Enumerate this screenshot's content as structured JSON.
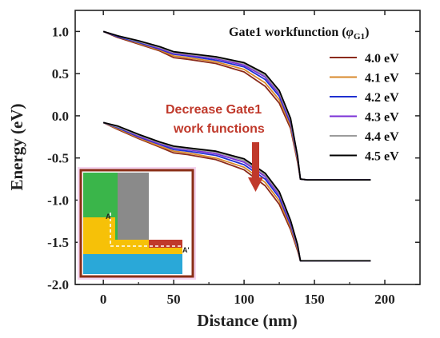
{
  "chart_data": {
    "type": "line",
    "xlabel": "Distance (nm)",
    "ylabel": "Energy (eV)",
    "xlim": [
      -20,
      225
    ],
    "ylim": [
      -2.0,
      1.25
    ],
    "xticks": [
      0,
      50,
      100,
      150,
      200
    ],
    "yticks": [
      1.0,
      0.5,
      0.0,
      -0.5,
      -1.0,
      -1.5,
      -2.0
    ],
    "xtick_labels": [
      "0",
      "50",
      "100",
      "150",
      "200"
    ],
    "ytick_labels": [
      "1.0",
      "0.5",
      "0.0",
      "-0.5",
      "-1.0",
      "-1.5",
      "-2.0"
    ],
    "legend": {
      "title_prefix": "Gate1 workfunction (",
      "title_symbol": "φ",
      "title_subscript": "G1",
      "title_suffix": ")",
      "placement": "top-right"
    },
    "annotation": {
      "line1": "Decrease Gate1",
      "line2": "work functions",
      "color": "#c0392b"
    },
    "inset": {
      "label_a": "A",
      "label_a_prime": "A'"
    },
    "series": [
      {
        "name": "4.0 eV",
        "color": "#8b2a1a",
        "upper": [
          [
            0,
            1.0
          ],
          [
            10,
            0.93
          ],
          [
            25,
            0.85
          ],
          [
            40,
            0.77
          ],
          [
            50,
            0.69
          ],
          [
            60,
            0.67
          ],
          [
            80,
            0.62
          ],
          [
            100,
            0.52
          ],
          [
            115,
            0.35
          ],
          [
            125,
            0.15
          ],
          [
            133,
            -0.15
          ],
          [
            138,
            -0.55
          ],
          [
            140,
            -0.75
          ],
          [
            145,
            -0.76
          ],
          [
            190,
            -0.76
          ]
        ],
        "lower": [
          [
            0,
            -0.08
          ],
          [
            10,
            -0.16
          ],
          [
            25,
            -0.27
          ],
          [
            40,
            -0.37
          ],
          [
            50,
            -0.44
          ],
          [
            60,
            -0.46
          ],
          [
            80,
            -0.52
          ],
          [
            100,
            -0.64
          ],
          [
            115,
            -0.83
          ],
          [
            125,
            -1.05
          ],
          [
            133,
            -1.35
          ],
          [
            138,
            -1.6
          ],
          [
            140,
            -1.72
          ],
          [
            145,
            -1.72
          ],
          [
            190,
            -1.72
          ]
        ]
      },
      {
        "name": "4.1 eV",
        "color": "#d8892b",
        "upper": [
          [
            0,
            1.0
          ],
          [
            10,
            0.94
          ],
          [
            25,
            0.86
          ],
          [
            40,
            0.78
          ],
          [
            50,
            0.71
          ],
          [
            60,
            0.69
          ],
          [
            80,
            0.64
          ],
          [
            100,
            0.55
          ],
          [
            115,
            0.39
          ],
          [
            125,
            0.19
          ],
          [
            133,
            -0.12
          ],
          [
            138,
            -0.53
          ],
          [
            140,
            -0.75
          ],
          [
            145,
            -0.76
          ],
          [
            190,
            -0.76
          ]
        ],
        "lower": [
          [
            0,
            -0.08
          ],
          [
            10,
            -0.15
          ],
          [
            25,
            -0.26
          ],
          [
            40,
            -0.36
          ],
          [
            50,
            -0.42
          ],
          [
            60,
            -0.44
          ],
          [
            80,
            -0.5
          ],
          [
            100,
            -0.61
          ],
          [
            115,
            -0.79
          ],
          [
            125,
            -1.01
          ],
          [
            133,
            -1.32
          ],
          [
            138,
            -1.58
          ],
          [
            140,
            -1.72
          ],
          [
            145,
            -1.72
          ],
          [
            190,
            -1.72
          ]
        ]
      },
      {
        "name": "4.2 eV",
        "color": "#1f2fd0",
        "upper": [
          [
            0,
            1.0
          ],
          [
            10,
            0.94
          ],
          [
            25,
            0.87
          ],
          [
            40,
            0.79
          ],
          [
            50,
            0.73
          ],
          [
            60,
            0.71
          ],
          [
            80,
            0.66
          ],
          [
            100,
            0.58
          ],
          [
            115,
            0.43
          ],
          [
            125,
            0.23
          ],
          [
            133,
            -0.09
          ],
          [
            138,
            -0.51
          ],
          [
            140,
            -0.75
          ],
          [
            145,
            -0.76
          ],
          [
            190,
            -0.76
          ]
        ],
        "lower": [
          [
            0,
            -0.08
          ],
          [
            10,
            -0.14
          ],
          [
            25,
            -0.25
          ],
          [
            40,
            -0.34
          ],
          [
            50,
            -0.4
          ],
          [
            60,
            -0.42
          ],
          [
            80,
            -0.47
          ],
          [
            100,
            -0.58
          ],
          [
            115,
            -0.75
          ],
          [
            125,
            -0.97
          ],
          [
            133,
            -1.29
          ],
          [
            138,
            -1.56
          ],
          [
            140,
            -1.72
          ],
          [
            145,
            -1.72
          ],
          [
            190,
            -1.72
          ]
        ]
      },
      {
        "name": "4.3 eV",
        "color": "#7a2fd6",
        "upper": [
          [
            0,
            1.0
          ],
          [
            10,
            0.95
          ],
          [
            25,
            0.88
          ],
          [
            40,
            0.8
          ],
          [
            50,
            0.74
          ],
          [
            60,
            0.72
          ],
          [
            80,
            0.68
          ],
          [
            100,
            0.6
          ],
          [
            115,
            0.46
          ],
          [
            125,
            0.26
          ],
          [
            133,
            -0.07
          ],
          [
            138,
            -0.5
          ],
          [
            140,
            -0.75
          ],
          [
            145,
            -0.76
          ],
          [
            190,
            -0.76
          ]
        ],
        "lower": [
          [
            0,
            -0.08
          ],
          [
            10,
            -0.13
          ],
          [
            25,
            -0.24
          ],
          [
            40,
            -0.33
          ],
          [
            50,
            -0.38
          ],
          [
            60,
            -0.4
          ],
          [
            80,
            -0.45
          ],
          [
            100,
            -0.55
          ],
          [
            115,
            -0.72
          ],
          [
            125,
            -0.94
          ],
          [
            133,
            -1.27
          ],
          [
            138,
            -1.55
          ],
          [
            140,
            -1.72
          ],
          [
            145,
            -1.72
          ],
          [
            190,
            -1.72
          ]
        ]
      },
      {
        "name": "4.4 eV",
        "color": "#9b9b9b",
        "upper": [
          [
            0,
            1.0
          ],
          [
            10,
            0.95
          ],
          [
            25,
            0.88
          ],
          [
            40,
            0.81
          ],
          [
            50,
            0.75
          ],
          [
            60,
            0.73
          ],
          [
            80,
            0.69
          ],
          [
            100,
            0.62
          ],
          [
            115,
            0.48
          ],
          [
            125,
            0.28
          ],
          [
            133,
            -0.05
          ],
          [
            138,
            -0.49
          ],
          [
            140,
            -0.75
          ],
          [
            145,
            -0.76
          ],
          [
            190,
            -0.76
          ]
        ],
        "lower": [
          [
            0,
            -0.08
          ],
          [
            10,
            -0.13
          ],
          [
            25,
            -0.23
          ],
          [
            40,
            -0.32
          ],
          [
            50,
            -0.37
          ],
          [
            60,
            -0.39
          ],
          [
            80,
            -0.43
          ],
          [
            100,
            -0.53
          ],
          [
            115,
            -0.7
          ],
          [
            125,
            -0.92
          ],
          [
            133,
            -1.25
          ],
          [
            138,
            -1.54
          ],
          [
            140,
            -1.72
          ],
          [
            145,
            -1.72
          ],
          [
            190,
            -1.72
          ]
        ]
      },
      {
        "name": "4.5 eV",
        "color": "#000000",
        "upper": [
          [
            0,
            1.0
          ],
          [
            10,
            0.95
          ],
          [
            25,
            0.89
          ],
          [
            40,
            0.82
          ],
          [
            50,
            0.76
          ],
          [
            60,
            0.74
          ],
          [
            80,
            0.7
          ],
          [
            100,
            0.63
          ],
          [
            115,
            0.5
          ],
          [
            125,
            0.3
          ],
          [
            133,
            -0.03
          ],
          [
            138,
            -0.48
          ],
          [
            140,
            -0.75
          ],
          [
            145,
            -0.76
          ],
          [
            190,
            -0.76
          ]
        ],
        "lower": [
          [
            0,
            -0.08
          ],
          [
            10,
            -0.12
          ],
          [
            25,
            -0.22
          ],
          [
            40,
            -0.31
          ],
          [
            50,
            -0.36
          ],
          [
            60,
            -0.38
          ],
          [
            80,
            -0.42
          ],
          [
            100,
            -0.51
          ],
          [
            115,
            -0.68
          ],
          [
            125,
            -0.9
          ],
          [
            133,
            -1.24
          ],
          [
            138,
            -1.53
          ],
          [
            140,
            -1.72
          ],
          [
            145,
            -1.72
          ],
          [
            190,
            -1.72
          ]
        ]
      }
    ]
  }
}
